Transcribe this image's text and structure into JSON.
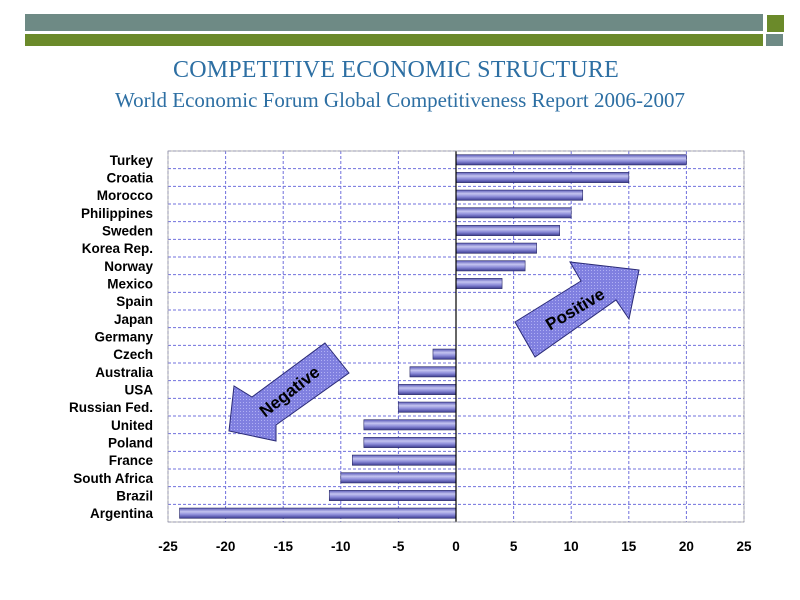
{
  "slide": {
    "title": "COMPETITIVE ECONOMIC STRUCTURE",
    "subtitle": "World Economic Forum Global Competitiveness Report 2006-2007"
  },
  "colors": {
    "bar": "#7f7fd0",
    "bar_highlight": "#c4c4f0",
    "bar_edge": "#2a2a66",
    "grid": "#7070dd",
    "arrow_fill": "#7a7ae0",
    "title": "#2d6fa3"
  },
  "arrows": {
    "positive_label": "Positive",
    "negative_label": "Negative"
  },
  "chart_data": {
    "type": "bar",
    "orientation": "horizontal",
    "categories": [
      "Turkey",
      "Croatia",
      "Morocco",
      "Philippines",
      "Sweden",
      "Korea Rep.",
      "Norway",
      "Mexico",
      "Spain",
      "Japan",
      "Germany",
      "Czech",
      "Australia",
      "USA",
      "Russian Fed.",
      "United",
      "Poland",
      "France",
      "South Africa",
      "Brazil",
      "Argentina"
    ],
    "values": [
      20,
      15,
      11,
      10,
      9,
      7,
      6,
      4,
      0,
      0,
      0,
      -2,
      -4,
      -5,
      -5,
      -8,
      -8,
      -9,
      -10,
      -11,
      -24
    ],
    "xlim": [
      -25,
      25
    ],
    "xticks": [
      "-25",
      "-20",
      "-15",
      "-10",
      "-5",
      "0",
      "5",
      "10",
      "15",
      "20",
      "25"
    ],
    "grid": true
  }
}
